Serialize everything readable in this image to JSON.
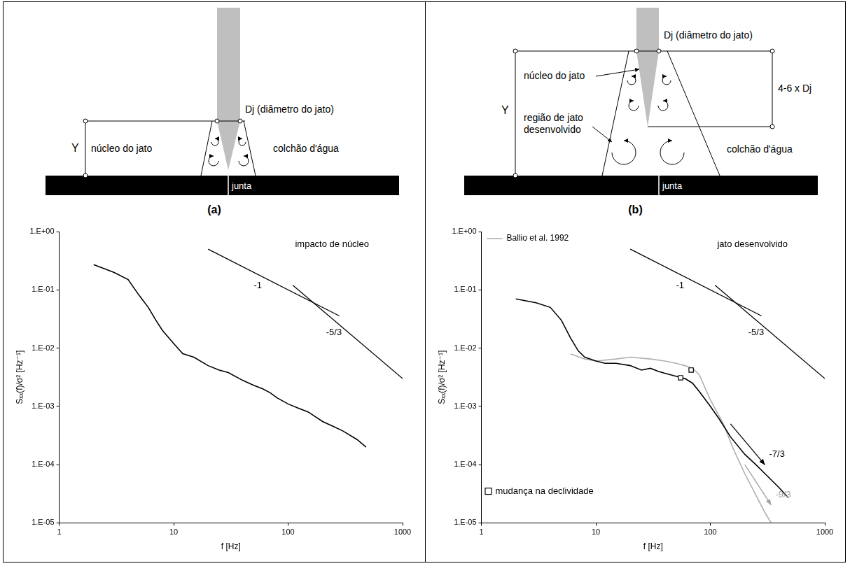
{
  "diagrams": [
    {
      "panel_label": "(a)",
      "jet_diameter": "Dj (diâmetro do jato)",
      "depth": "Y",
      "core": "núcleo do jato",
      "cushion": "colchão d'água",
      "joint": "junta"
    },
    {
      "panel_label": "(b)",
      "jet_diameter": "Dj (diâmetro do jato)",
      "depth": "Y",
      "core": "núcleo do jato",
      "core_length": "4-6 x Dj",
      "developed_region": "região de jato desenvolvido",
      "cushion": "colchão d'água",
      "joint": "junta"
    }
  ],
  "chart_data": [
    {
      "type": "line",
      "log": true,
      "grid": false,
      "xlabel": "f [Hz]",
      "ylabel": "Sₓₓ(f)/σ² [Hz⁻¹]",
      "xlim": [
        1,
        1000
      ],
      "xticks": [
        1,
        10,
        100,
        1000
      ],
      "ylim": [
        1e-05,
        1
      ],
      "yticks": [
        {
          "value": 1e-05,
          "label": "1.E-05"
        },
        {
          "value": 0.0001,
          "label": "1.E-04"
        },
        {
          "value": 0.001,
          "label": "1.E-03"
        },
        {
          "value": 0.01,
          "label": "1.E-02"
        },
        {
          "value": 0.1,
          "label": "1.E-01"
        },
        {
          "value": 1,
          "label": "1.E+00"
        }
      ],
      "series": [
        {
          "color": "#000000",
          "x": [
            2,
            3,
            4,
            5,
            6,
            7,
            8,
            10,
            12,
            15,
            20,
            25,
            30,
            40,
            50,
            60,
            70,
            80,
            100,
            120,
            150,
            200,
            250,
            300,
            400,
            480
          ],
          "values": [
            0.27,
            0.2,
            0.15,
            0.08,
            0.05,
            0.03,
            0.02,
            0.012,
            0.008,
            0.007,
            0.005,
            0.0042,
            0.0038,
            0.0028,
            0.0023,
            0.002,
            0.0017,
            0.0014,
            0.0011,
            0.00095,
            0.0008,
            0.00055,
            0.00045,
            0.00038,
            0.00027,
            0.0002
          ]
        }
      ],
      "reference_lines": [
        {
          "label": "-1",
          "color": "#000000",
          "x": [
            20,
            280
          ],
          "values": [
            0.5,
            0.0357
          ]
        },
        {
          "label": "-5/3",
          "color": "#000000",
          "x": [
            110,
            1000
          ],
          "values": [
            0.12,
            0.003
          ]
        }
      ],
      "annotations": [
        {
          "text": "impacto de núcleo",
          "x": 115,
          "y": 0.6
        }
      ]
    },
    {
      "type": "line",
      "log": true,
      "grid": false,
      "legend": "upper left",
      "xlabel": "f [Hz]",
      "ylabel": "Sₓₓ(f)/σ² [Hz⁻¹]",
      "xlim": [
        1,
        1000
      ],
      "xticks": [
        1,
        10,
        100,
        1000
      ],
      "ylim": [
        1e-05,
        1
      ],
      "yticks": [
        {
          "value": 1e-05,
          "label": "1.E-05"
        },
        {
          "value": 0.0001,
          "label": "1.E-04"
        },
        {
          "value": 0.001,
          "label": "1.E-03"
        },
        {
          "value": 0.01,
          "label": "1.E-02"
        },
        {
          "value": 0.1,
          "label": "1.E-01"
        },
        {
          "value": 1,
          "label": "1.E+00"
        }
      ],
      "series": [
        {
          "color": "#000000",
          "x": [
            2,
            3,
            4,
            5,
            6,
            7,
            8,
            10,
            12,
            15,
            20,
            25,
            30,
            35,
            40,
            50,
            60,
            70,
            80,
            100,
            120,
            150,
            200,
            250,
            300,
            400,
            480
          ],
          "values": [
            0.07,
            0.06,
            0.05,
            0.03,
            0.015,
            0.009,
            0.007,
            0.006,
            0.0055,
            0.0055,
            0.005,
            0.0042,
            0.0045,
            0.004,
            0.0037,
            0.0033,
            0.003,
            0.0025,
            0.0018,
            0.001,
            0.0006,
            0.0003,
            0.00015,
            0.0001,
            7e-05,
            4e-05,
            2.7e-05
          ]
        },
        {
          "name": "Ballio et al. 1992",
          "color": "#b0b0b0",
          "x": [
            6,
            8,
            10,
            15,
            20,
            30,
            40,
            50,
            60,
            70,
            80,
            100,
            130,
            160,
            200,
            250,
            300,
            340
          ],
          "values": [
            0.008,
            0.0065,
            0.006,
            0.0065,
            0.007,
            0.0065,
            0.006,
            0.0055,
            0.005,
            0.0045,
            0.0035,
            0.0013,
            0.0005,
            0.00018,
            7e-05,
            3e-05,
            1.5e-05,
            1e-05
          ]
        },
        {
          "type": "scatter",
          "marker": "square",
          "color": "#000000",
          "x": [
            55,
            68
          ],
          "values": [
            0.0031,
            0.0042
          ]
        }
      ],
      "reference_lines": [
        {
          "label": "-1",
          "color": "#000000",
          "x": [
            20,
            280
          ],
          "values": [
            0.5,
            0.0357
          ]
        },
        {
          "label": "-5/3",
          "color": "#000000",
          "x": [
            110,
            1000
          ],
          "values": [
            0.12,
            0.003
          ]
        },
        {
          "label": "-7/3",
          "color": "#000000",
          "line_style": "arrow",
          "x": [
            150,
            300
          ],
          "values": [
            0.0005,
            9.92e-05
          ]
        },
        {
          "label": "-9/3",
          "color": "#a0a0a0",
          "line_style": "arrow",
          "x": [
            200,
            340
          ],
          "values": [
            0.0001,
            2.03e-05
          ]
        }
      ],
      "annotations": [
        {
          "text": "jato desenvolvido",
          "x": 115,
          "y": 0.6
        },
        {
          "text": "mudança na declividade",
          "x": 1.15,
          "y": 3.5e-05,
          "marker": "square"
        }
      ]
    }
  ]
}
